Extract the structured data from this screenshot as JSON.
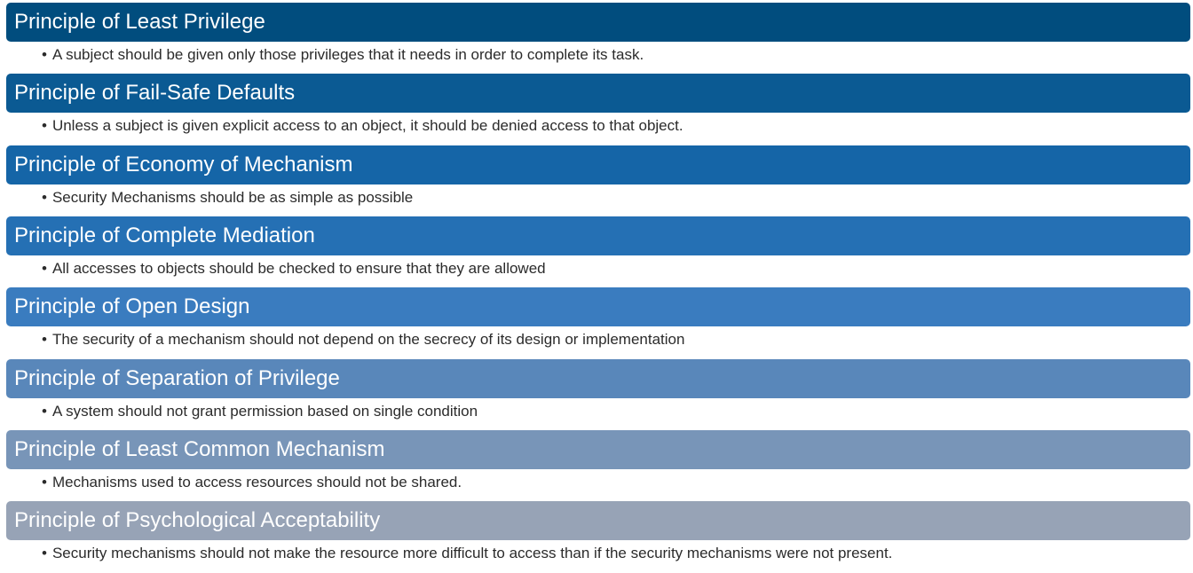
{
  "principles": [
    {
      "title": "Principle of Least Privilege",
      "desc": "A subject should be given only those privileges that it needs in order to complete its task.",
      "color": "#014d7e"
    },
    {
      "title": "Principle of Fail-Safe Defaults",
      "desc": "Unless a subject is given explicit access to an object, it should be denied access to that object.",
      "color": "#0b5a93"
    },
    {
      "title": "Principle of Economy of Mechanism",
      "desc": "Security Mechanisms should be as simple as possible",
      "color": "#1565a7"
    },
    {
      "title": "Principle of Complete Mediation",
      "desc": "All accesses to objects should be checked to ensure that they are allowed",
      "color": "#2570b4"
    },
    {
      "title": "Principle of Open Design",
      "desc": "The security of a mechanism should not depend on the secrecy of its design or implementation",
      "color": "#3a7cbf"
    },
    {
      "title": "Principle of Separation of Privilege",
      "desc": "A system should not grant permission based on single condition",
      "color": "#5987ba"
    },
    {
      "title": "Principle of Least Common Mechanism",
      "desc": "Mechanisms used to access resources should not be shared.",
      "color": "#7895b8"
    },
    {
      "title": "Principle of Psychological Acceptability",
      "desc": "Security mechanisms should not make the resource more difficult to access than if the security mechanisms were not present.",
      "color": "#97a3b6"
    }
  ],
  "bullet": "•"
}
